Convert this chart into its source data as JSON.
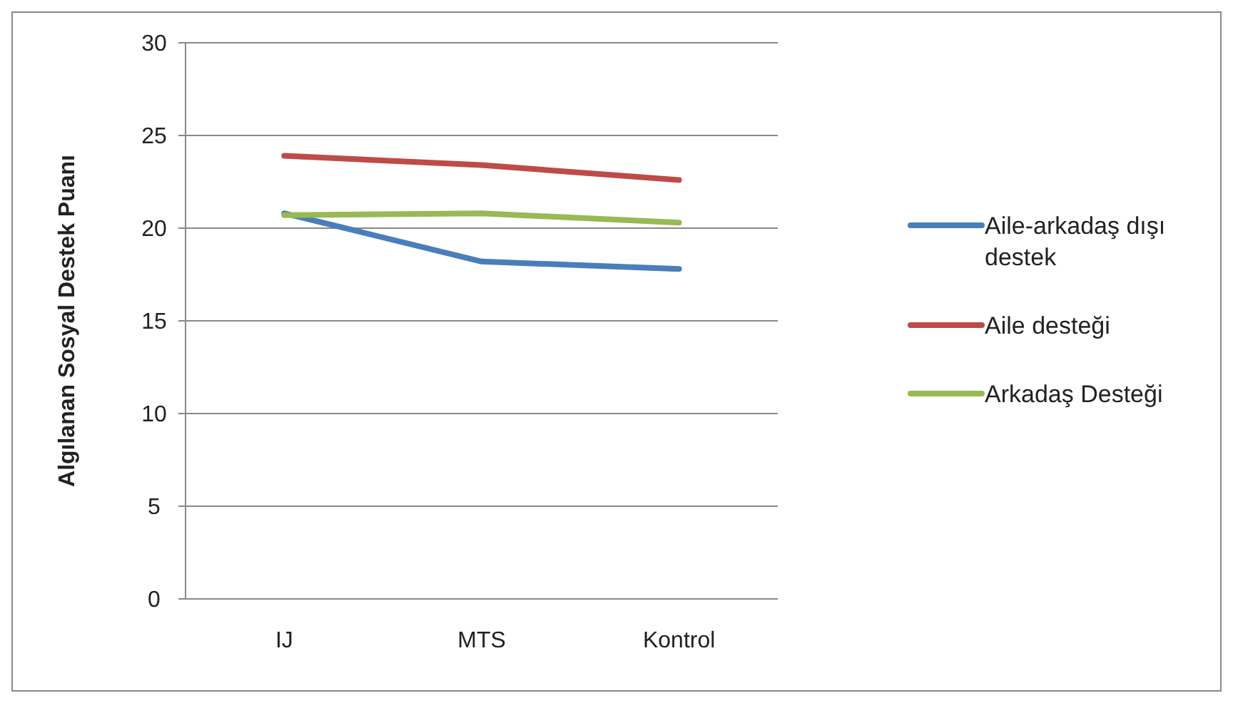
{
  "chart_data": {
    "type": "line",
    "ylabel": "Algılanan Sosyal Destek Puanı",
    "categories": [
      "IJ",
      "MTS",
      "Kontrol"
    ],
    "ylim": [
      0,
      30
    ],
    "yticks": [
      0,
      5,
      10,
      15,
      20,
      25,
      30
    ],
    "grid": "y",
    "legend": "right",
    "marker": "none",
    "series": [
      {
        "name": "Aile-arkadaş dışı destek",
        "color": "#4a7ebb",
        "values": [
          20.8,
          18.2,
          17.8
        ]
      },
      {
        "name": "Aile desteği",
        "color": "#be4b48",
        "values": [
          23.9,
          23.4,
          22.6
        ]
      },
      {
        "name": "Arkadaş Desteği",
        "color": "#98b954",
        "values": [
          20.7,
          20.8,
          20.3
        ]
      }
    ]
  }
}
